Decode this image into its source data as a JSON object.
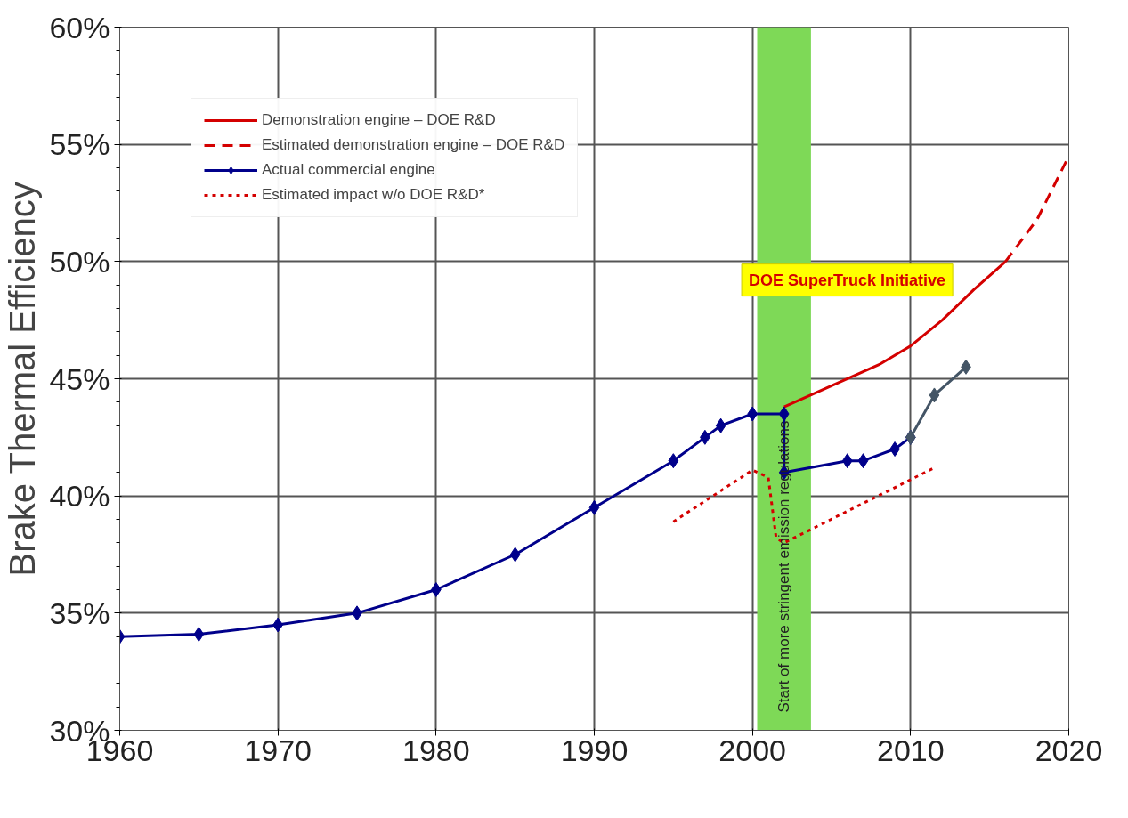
{
  "chart_data": {
    "type": "line",
    "ylabel": "Brake Thermal Efficiency",
    "xlim": [
      1960,
      2020
    ],
    "xticks": [
      1960,
      1970,
      1980,
      1990,
      2000,
      2010,
      2020
    ],
    "ylim": [
      30,
      60
    ],
    "yticks": [
      {
        "value": 30,
        "label": "30%"
      },
      {
        "value": 35,
        "label": "35%"
      },
      {
        "value": 40,
        "label": "40%"
      },
      {
        "value": 45,
        "label": "45%"
      },
      {
        "value": 50,
        "label": "50%"
      },
      {
        "value": 55,
        "label": "55%"
      },
      {
        "value": 60,
        "label": "60%"
      }
    ],
    "grid": true,
    "legend": "top left",
    "marker": "none",
    "series": [
      {
        "name": "Demonstration engine – DOE R&D",
        "color": "#d40000",
        "line_style": "solid",
        "x": [
          2002,
          2005,
          2008,
          2010,
          2012,
          2014,
          2016
        ],
        "values": [
          43.8,
          44.7,
          45.6,
          46.4,
          47.5,
          48.8,
          50.0
        ]
      },
      {
        "name": "Estimated demonstration engine – DOE R&D",
        "color": "#d40000",
        "line_style": "dashed",
        "x": [
          2016,
          2018,
          2020
        ],
        "values": [
          50.0,
          51.8,
          54.5
        ]
      },
      {
        "name": "Actual commercial engine",
        "color": "#00008b",
        "line_style": "solid",
        "marker": "diamond",
        "x": [
          1960,
          1965,
          1970,
          1975,
          1980,
          1985,
          1990,
          1995,
          1997,
          1998,
          2000,
          2002,
          2002,
          2006,
          2007,
          2009,
          2010
        ],
        "values": [
          34.0,
          34.1,
          34.5,
          35.0,
          36.0,
          37.5,
          39.5,
          41.5,
          42.5,
          43.0,
          43.5,
          43.5,
          41.0,
          41.5,
          41.5,
          42.0,
          42.5
        ]
      },
      {
        "name": "Estimated impact w/o DOE R&D*",
        "color": "#d40000",
        "line_style": "dotted",
        "x": [
          1995,
          2000,
          2001,
          2001.5,
          2002,
          2011.5
        ],
        "values": [
          38.9,
          41.1,
          40.8,
          38.2,
          38.0,
          41.2
        ]
      },
      {
        "color": "#445566",
        "line_style": "solid",
        "marker": "diamond",
        "x": [
          2010,
          2011.5,
          2013.5
        ],
        "values": [
          42.5,
          44.3,
          45.5
        ]
      }
    ],
    "bands": [
      {
        "axis": "x",
        "from": 2000.3,
        "to": 2003.7,
        "label": "Start of more stringent emission regulations",
        "color": "#7ed957"
      }
    ],
    "annotations": [
      {
        "text": "DOE SuperTruck Initiative",
        "x": 2013,
        "y": 48.3
      }
    ]
  }
}
